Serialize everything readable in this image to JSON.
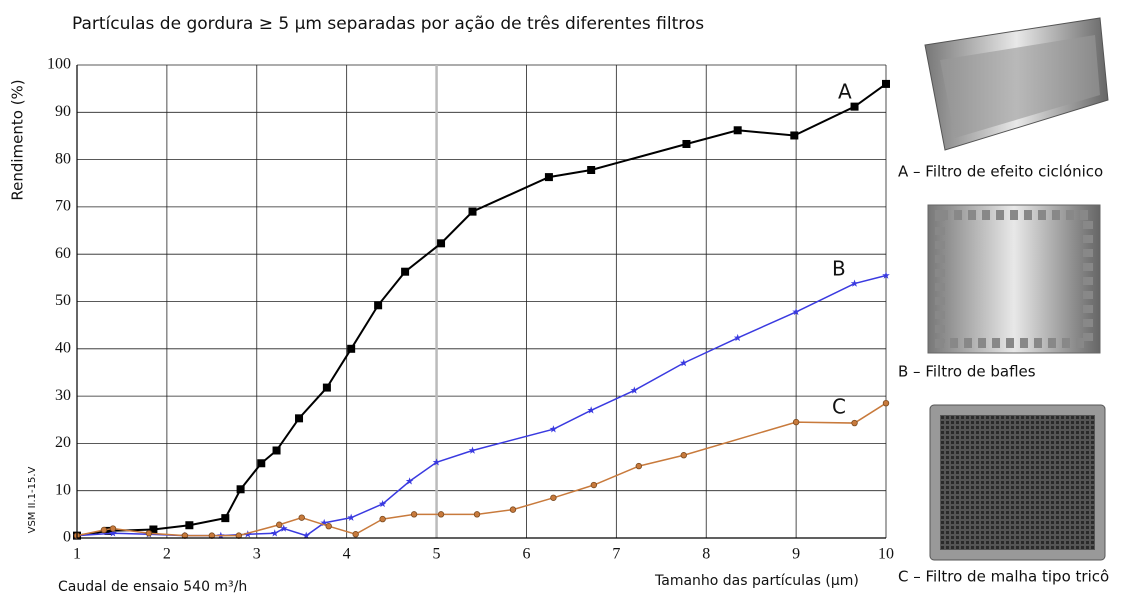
{
  "chart_data": {
    "type": "line",
    "title": "Partículas de gordura ≥ 5 µm  separadas por ação de três diferentes filtros",
    "y_label": "Rendimento (%)",
    "x_label": "Tamanho das partículas (µm)",
    "note": "Caudal de ensaio 540 m³/h",
    "code": "VSM II.1-15.V",
    "xlim": [
      1,
      10
    ],
    "xticks": [
      1,
      2,
      3,
      4,
      5,
      6,
      7,
      8,
      9,
      10
    ],
    "ylim": [
      0,
      100
    ],
    "yticks": [
      0,
      10,
      20,
      30,
      40,
      50,
      60,
      70,
      80,
      90,
      100
    ],
    "grid": true,
    "highlight_x": 5,
    "series": [
      {
        "name": "A",
        "color": "#000000",
        "marker": "square",
        "description": "A – Filtro de efeito ciclónico",
        "x": [
          1.0,
          1.35,
          1.85,
          2.25,
          2.65,
          2.82,
          3.05,
          3.22,
          3.47,
          3.78,
          4.05,
          4.35,
          4.65,
          5.05,
          5.4,
          6.25,
          6.72,
          7.78,
          8.35,
          8.98,
          9.65,
          10.0
        ],
        "values": [
          0.5,
          1.5,
          1.8,
          2.7,
          4.2,
          10.3,
          15.8,
          18.5,
          25.3,
          31.8,
          40,
          49.2,
          56.3,
          62.3,
          69,
          76.3,
          77.8,
          83.3,
          86.2,
          85.1,
          91.2,
          96
        ]
      },
      {
        "name": "B",
        "color": "#3a3ae0",
        "marker": "star",
        "description": "B – Filtro de bafles",
        "x": [
          1.0,
          1.4,
          1.8,
          2.2,
          2.6,
          2.9,
          3.2,
          3.3,
          3.55,
          3.75,
          4.05,
          4.4,
          4.7,
          5.0,
          5.4,
          6.3,
          6.72,
          7.2,
          7.75,
          8.35,
          9.0,
          9.65,
          10.0
        ],
        "values": [
          0.5,
          1,
          0.8,
          0.5,
          0.5,
          0.8,
          1,
          2,
          0.5,
          3.2,
          4.3,
          7.2,
          12,
          16,
          18.5,
          23,
          27,
          31.2,
          37,
          42.3,
          47.8,
          53.8,
          55.5
        ]
      },
      {
        "name": "C",
        "color": "#c87a3c",
        "marker": "circle",
        "description": "C – Filtro de malha tipo tricô",
        "x": [
          1.0,
          1.3,
          1.4,
          1.8,
          2.2,
          2.5,
          2.8,
          3.25,
          3.5,
          3.8,
          4.1,
          4.4,
          4.75,
          5.05,
          5.45,
          5.85,
          6.3,
          6.75,
          7.25,
          7.75,
          9.0,
          9.65,
          10.0
        ],
        "values": [
          0.5,
          1.7,
          2,
          1,
          0.5,
          0.5,
          0.5,
          2.8,
          4.3,
          2.5,
          0.8,
          4,
          5,
          5,
          5,
          6,
          8.5,
          11.2,
          15.2,
          17.5,
          24.5,
          24.3,
          28.5
        ]
      }
    ]
  }
}
